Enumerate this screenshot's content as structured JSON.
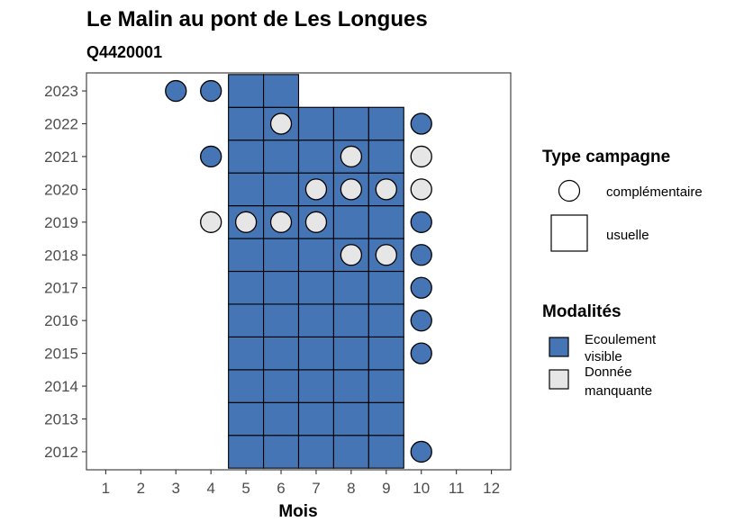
{
  "chart_data": {
    "type": "heatmap",
    "title": "Le Malin au pont de Les Longues",
    "subtitle": "Q4420001",
    "xlabel": "Mois",
    "ylabel": "",
    "x_ticks": [
      1,
      2,
      3,
      4,
      5,
      6,
      7,
      8,
      9,
      10,
      11,
      12
    ],
    "y_ticks": [
      2012,
      2013,
      2014,
      2015,
      2016,
      2017,
      2018,
      2019,
      2020,
      2021,
      2022,
      2023
    ],
    "grid": false,
    "colors": {
      "ecoulement": "#4575b4",
      "manquante": "#e6e6e6",
      "outline": "#000000"
    },
    "usuelle": [
      {
        "year": 2012,
        "months": [
          5,
          6,
          7,
          8,
          9
        ],
        "mod": "Ecoulement visible"
      },
      {
        "year": 2013,
        "months": [
          5,
          6,
          7,
          8,
          9
        ],
        "mod": "Ecoulement visible"
      },
      {
        "year": 2014,
        "months": [
          5,
          6,
          7,
          8,
          9
        ],
        "mod": "Ecoulement visible"
      },
      {
        "year": 2015,
        "months": [
          5,
          6,
          7,
          8,
          9
        ],
        "mod": "Ecoulement visible"
      },
      {
        "year": 2016,
        "months": [
          5,
          6,
          7,
          8,
          9
        ],
        "mod": "Ecoulement visible"
      },
      {
        "year": 2017,
        "months": [
          5,
          6,
          7,
          8,
          9
        ],
        "mod": "Ecoulement visible"
      },
      {
        "year": 2018,
        "months": [
          5,
          6,
          7,
          8,
          9
        ],
        "mod": "Ecoulement visible"
      },
      {
        "year": 2019,
        "months": [
          5,
          6,
          7,
          8,
          9
        ],
        "mod": "Ecoulement visible"
      },
      {
        "year": 2020,
        "months": [
          5,
          6,
          7,
          8,
          9
        ],
        "mod": "Ecoulement visible"
      },
      {
        "year": 2021,
        "months": [
          5,
          6,
          7,
          8,
          9
        ],
        "mod": "Ecoulement visible"
      },
      {
        "year": 2022,
        "months": [
          5,
          6,
          7,
          8,
          9
        ],
        "mod": "Ecoulement visible"
      },
      {
        "year": 2023,
        "months": [
          5,
          6
        ],
        "mod": "Ecoulement visible"
      }
    ],
    "complementaire": [
      {
        "year": 2012,
        "month": 10,
        "mod": "Ecoulement visible"
      },
      {
        "year": 2015,
        "month": 10,
        "mod": "Ecoulement visible"
      },
      {
        "year": 2016,
        "month": 10,
        "mod": "Ecoulement visible"
      },
      {
        "year": 2017,
        "month": 10,
        "mod": "Ecoulement visible"
      },
      {
        "year": 2018,
        "month": 8,
        "mod": "Donnée manquante"
      },
      {
        "year": 2018,
        "month": 9,
        "mod": "Donnée manquante"
      },
      {
        "year": 2018,
        "month": 10,
        "mod": "Ecoulement visible"
      },
      {
        "year": 2019,
        "month": 4,
        "mod": "Donnée manquante"
      },
      {
        "year": 2019,
        "month": 5,
        "mod": "Donnée manquante"
      },
      {
        "year": 2019,
        "month": 6,
        "mod": "Donnée manquante"
      },
      {
        "year": 2019,
        "month": 7,
        "mod": "Donnée manquante"
      },
      {
        "year": 2019,
        "month": 10,
        "mod": "Ecoulement visible"
      },
      {
        "year": 2020,
        "month": 7,
        "mod": "Donnée manquante"
      },
      {
        "year": 2020,
        "month": 8,
        "mod": "Donnée manquante"
      },
      {
        "year": 2020,
        "month": 9,
        "mod": "Donnée manquante"
      },
      {
        "year": 2020,
        "month": 10,
        "mod": "Donnée manquante"
      },
      {
        "year": 2021,
        "month": 4,
        "mod": "Ecoulement visible"
      },
      {
        "year": 2021,
        "month": 8,
        "mod": "Donnée manquante"
      },
      {
        "year": 2021,
        "month": 10,
        "mod": "Donnée manquante"
      },
      {
        "year": 2022,
        "month": 6,
        "mod": "Donnée manquante"
      },
      {
        "year": 2022,
        "month": 10,
        "mod": "Ecoulement visible"
      },
      {
        "year": 2023,
        "month": 3,
        "mod": "Ecoulement visible"
      },
      {
        "year": 2023,
        "month": 4,
        "mod": "Ecoulement visible"
      }
    ],
    "legend": {
      "placement": "right",
      "type_title": "Type campagne",
      "type_items": [
        "complémentaire",
        "usuelle"
      ],
      "mod_title": "Modalités",
      "mod_items": [
        {
          "label_line1": "Ecoulement",
          "label_line2": "visible",
          "key": "Ecoulement visible"
        },
        {
          "label_line1": "Donnée",
          "label_line2": "manquante",
          "key": "Donnée manquante"
        }
      ]
    }
  }
}
